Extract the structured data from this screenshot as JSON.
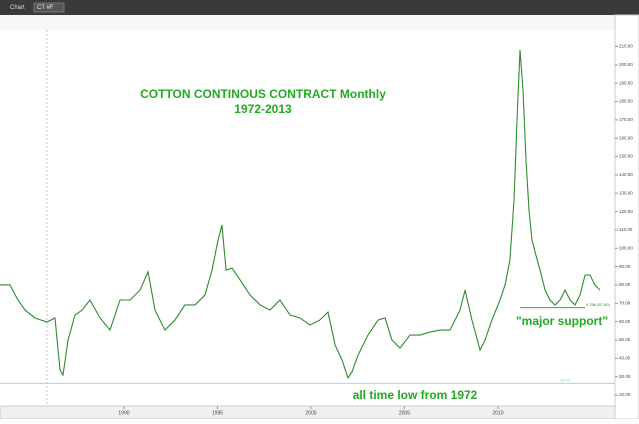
{
  "toolbar": {
    "title": "Chart",
    "symbol": "CT #F"
  },
  "chart_data": {
    "type": "line",
    "title": "COTTON CONTINOUS CONTRACT Monthly",
    "subtitle": "1972-2013",
    "annotations": [
      "\"major support\"",
      "all time low from 1972"
    ],
    "color": "#2e8b2e",
    "x": [
      1983.37,
      1983.9,
      1984.33,
      1984.71,
      1985.24,
      1985.88,
      1986.31,
      1986.58,
      1986.74,
      1987.01,
      1987.38,
      1987.76,
      1988.18,
      1988.72,
      1989.25,
      1989.79,
      1990.32,
      1990.86,
      1991.29,
      1991.66,
      1992.19,
      1992.73,
      1993.26,
      1993.8,
      1994.33,
      1994.71,
      1995.03,
      1995.24,
      1995.46,
      1995.78,
      1996.21,
      1996.74,
      1997.28,
      1997.81,
      1998.34,
      1998.88,
      1999.41,
      1999.95,
      2000.48,
      2000.91,
      2001.29,
      2001.66,
      2001.98,
      2002.19,
      2002.52,
      2003.05,
      2003.59,
      2003.96,
      2004.33,
      2004.76,
      2005.3,
      2005.83,
      2006.37,
      2006.9,
      2007.44,
      2007.97,
      2008.24,
      2008.61,
      2009.04,
      2009.31,
      2009.68,
      2010.11,
      2010.38,
      2010.64,
      2010.86,
      2011.02,
      2011.18,
      2011.34,
      2011.5,
      2011.66,
      2011.82,
      2012.03,
      2012.25,
      2012.52,
      2012.78,
      2013.05,
      2013.32,
      2013.59,
      2013.86,
      2014.12,
      2014.39,
      2014.66,
      2014.92,
      2015.19,
      2015.46
    ],
    "values": [
      80.0,
      80.0,
      71.8,
      66.3,
      62.0,
      59.8,
      62.0,
      33.6,
      30.9,
      50.0,
      63.6,
      66.3,
      71.8,
      62.0,
      55.4,
      71.8,
      71.8,
      77.2,
      87.1,
      66.3,
      55.4,
      60.9,
      69.1,
      69.1,
      74.5,
      88.1,
      104.5,
      112.7,
      88.1,
      89.2,
      82.7,
      74.5,
      69.1,
      66.3,
      71.8,
      63.6,
      62.0,
      58.2,
      60.9,
      65.2,
      47.3,
      39.1,
      29.3,
      32.5,
      41.8,
      52.7,
      60.9,
      62.0,
      50.0,
      45.6,
      52.7,
      52.7,
      54.3,
      55.4,
      55.4,
      66.3,
      77.2,
      60.9,
      44.5,
      50.0,
      60.9,
      71.8,
      80.0,
      93.6,
      126.3,
      169.9,
      208.1,
      186.3,
      148.1,
      120.9,
      104.5,
      96.3,
      88.1,
      77.2,
      71.8,
      69.1,
      71.8,
      77.2,
      71.8,
      69.1,
      74.5,
      85.4,
      85.4,
      80.0,
      77.2
    ],
    "hlines": [
      {
        "value": 67.6,
        "label": "0.786 (67.60)",
        "color": "#2e8b2e"
      },
      {
        "value": 26.4,
        "label": "26.40",
        "color": "#7fc8d8"
      }
    ],
    "crosshair_x": 1985.88,
    "xlim": [
      1983.37,
      2016.26
    ],
    "ylim": [
      14,
      219
    ],
    "xticks": [
      1990,
      1995,
      2000,
      2005,
      2010
    ],
    "yticks": [
      {
        "value": 20,
        "label": "20.00"
      },
      {
        "value": 30,
        "label": "30.00"
      },
      {
        "value": 40,
        "label": "40.00"
      },
      {
        "value": 50,
        "label": "50.00"
      },
      {
        "value": 60,
        "label": "60.00"
      },
      {
        "value": 70,
        "label": "70.00"
      },
      {
        "value": 80,
        "label": "80.00"
      },
      {
        "value": 90,
        "label": "90.00"
      },
      {
        "value": 100,
        "label": "100.00"
      },
      {
        "value": 110,
        "label": "110.00"
      },
      {
        "value": 120,
        "label": "120.00"
      },
      {
        "value": 130,
        "label": "130.00"
      },
      {
        "value": 140,
        "label": "140.00"
      },
      {
        "value": 150,
        "label": "150.00"
      },
      {
        "value": 160,
        "label": "160.00"
      },
      {
        "value": 170,
        "label": "170.00"
      },
      {
        "value": 180,
        "label": "180.00"
      },
      {
        "value": 190,
        "label": "190.00"
      },
      {
        "value": 200,
        "label": "200.00"
      },
      {
        "value": 210,
        "label": "210.00"
      }
    ]
  }
}
